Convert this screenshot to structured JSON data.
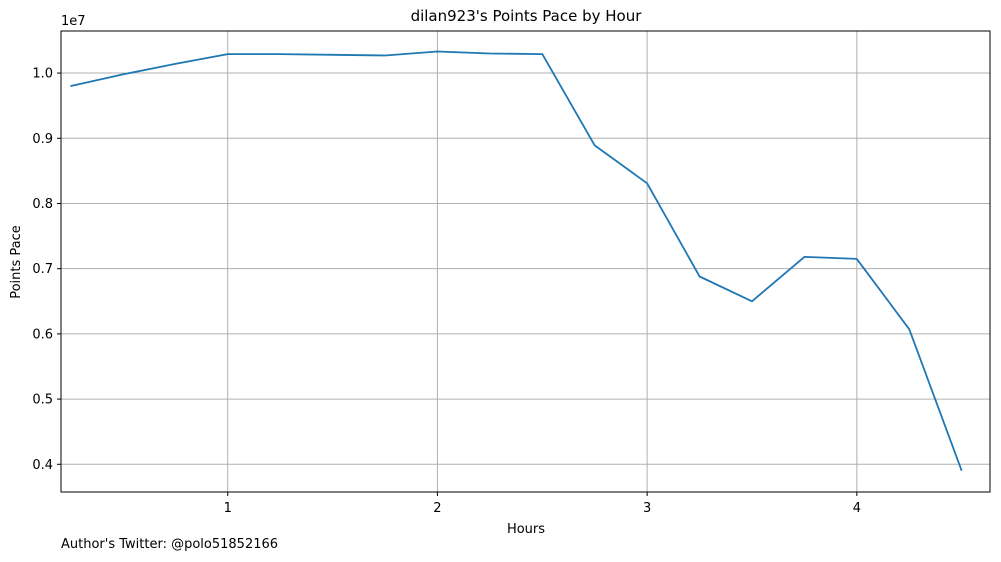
{
  "chart_data": {
    "type": "line",
    "title": "dilan923's Points Pace by Hour",
    "xlabel": "Hours",
    "ylabel": "Points Pace",
    "y_offset_label": "1e7",
    "xlim": [
      0.205,
      4.635
    ],
    "ylim": [
      0.3575,
      1.0645
    ],
    "xticks": [
      1,
      2,
      3,
      4
    ],
    "xtick_labels": [
      "1",
      "2",
      "3",
      "4"
    ],
    "yticks": [
      0.4,
      0.5,
      0.6,
      0.7,
      0.8,
      0.9,
      1.0
    ],
    "ytick_labels": [
      "0.4",
      "0.5",
      "0.6",
      "0.7",
      "0.8",
      "0.9",
      "1.0"
    ],
    "grid": true,
    "line_color": "#1f77b4",
    "series": [
      {
        "x": [
          0.25,
          0.5,
          0.75,
          1.0,
          1.25,
          1.5,
          1.75,
          2.0,
          2.25,
          2.5,
          2.75,
          3.0,
          3.25,
          3.5,
          3.75,
          4.0,
          4.25,
          4.5
        ],
        "values": [
          0.98,
          0.998,
          1.014,
          1.029,
          1.029,
          1.028,
          1.027,
          1.033,
          1.03,
          1.029,
          0.889,
          0.831,
          0.688,
          0.65,
          0.718,
          0.715,
          0.607,
          0.39
        ]
      }
    ]
  },
  "footnote": "Author's Twitter: @polo51852166"
}
